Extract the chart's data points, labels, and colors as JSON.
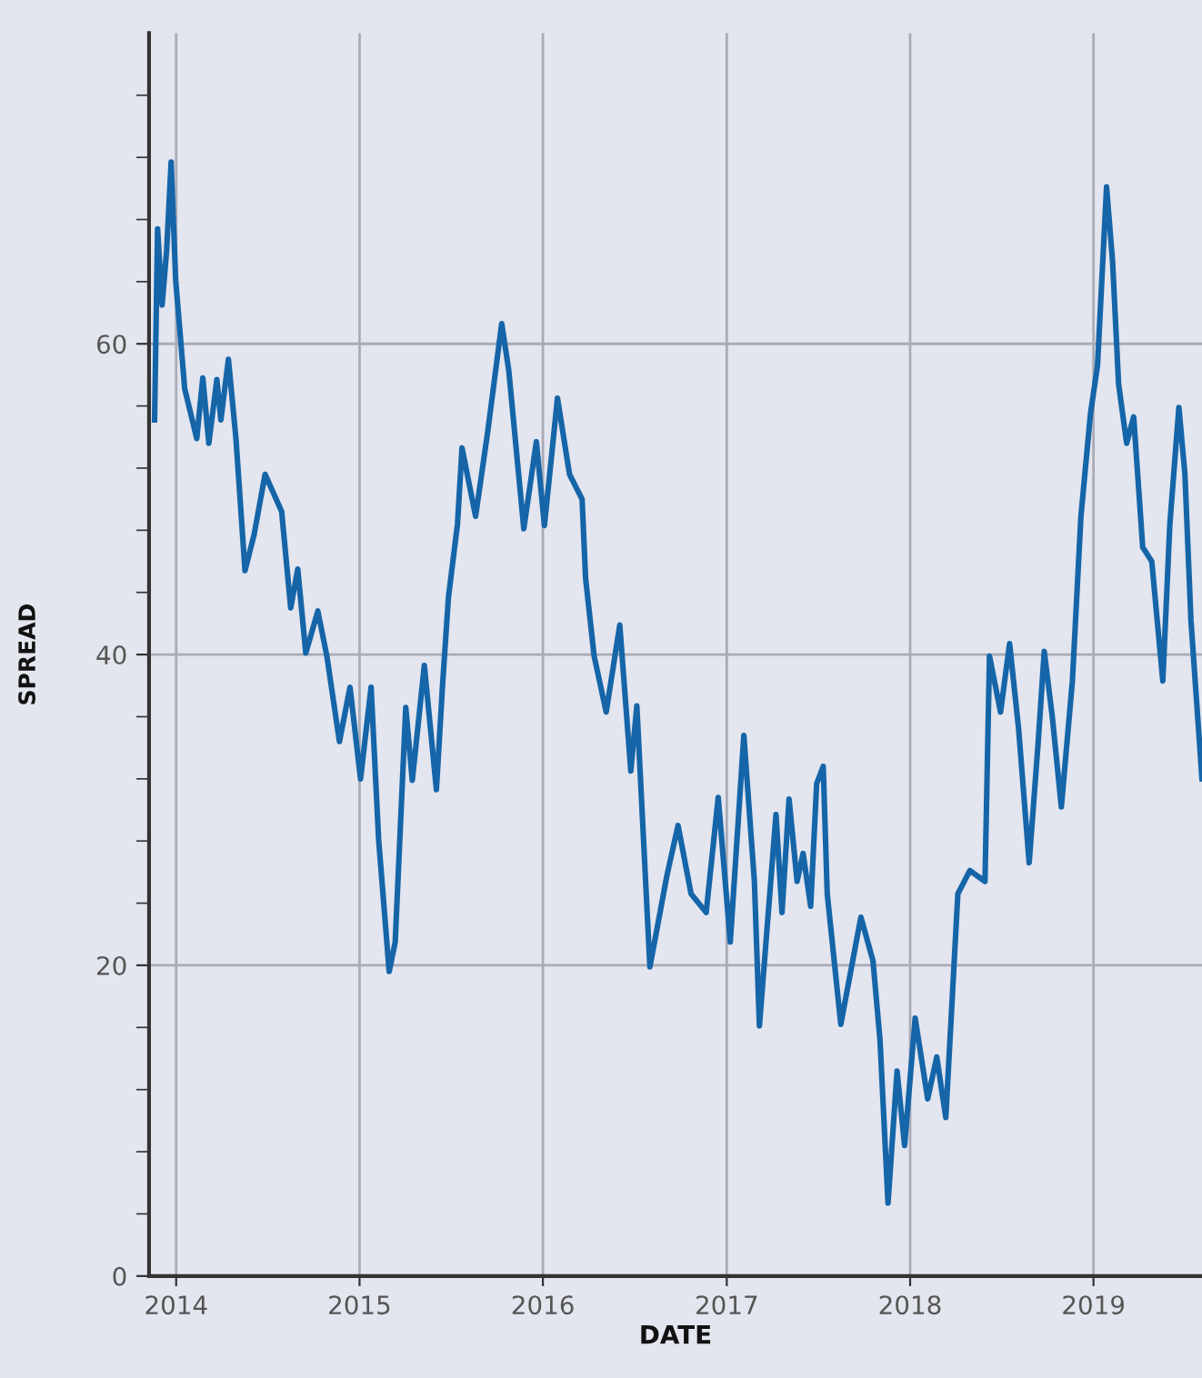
{
  "chart_data": {
    "type": "line",
    "xlabel": "DATE",
    "ylabel": "SPREAD",
    "xlim": [
      "2013-11-08",
      "2019-08-05"
    ],
    "xticks": [
      {
        "value": "2014-01-01",
        "label": "2014"
      },
      {
        "value": "2015-01-01",
        "label": "2015"
      },
      {
        "value": "2016-01-01",
        "label": "2016"
      },
      {
        "value": "2017-01-01",
        "label": "2017"
      },
      {
        "value": "2018-01-01",
        "label": "2018"
      },
      {
        "value": "2019-01-01",
        "label": "2019"
      }
    ],
    "ylim": [
      0,
      80
    ],
    "yticks": [
      0,
      {
        "value": 4,
        "label": null
      },
      {
        "value": 8,
        "label": null
      },
      {
        "value": 12,
        "label": null
      },
      {
        "value": 16,
        "label": null
      },
      20,
      {
        "value": 24,
        "label": null
      },
      {
        "value": 28,
        "label": null
      },
      {
        "value": 32,
        "label": null
      },
      {
        "value": 36,
        "label": null
      },
      40,
      {
        "value": 44,
        "label": null
      },
      {
        "value": 48,
        "label": null
      },
      {
        "value": 52,
        "label": null
      },
      {
        "value": 56,
        "label": null
      },
      60,
      {
        "value": 64,
        "label": null
      },
      {
        "value": 68,
        "label": null
      },
      {
        "value": 72,
        "label": null
      },
      {
        "value": 76,
        "label": null
      }
    ],
    "grid": true,
    "marker": "none",
    "line_style": "solid",
    "series": [
      {
        "color": "#1565a8",
        "x": [
          "2013-11-19",
          "2013-11-25",
          "2013-12-04",
          "2013-12-13",
          "2013-12-22",
          "2013-12-31",
          "2014-01-18",
          "2014-02-11",
          "2014-02-23",
          "2014-03-07",
          "2014-03-23",
          "2014-03-31",
          "2014-04-15",
          "2014-04-30",
          "2014-05-18",
          "2014-06-05",
          "2014-06-27",
          "2014-07-30",
          "2014-08-17",
          "2014-08-31",
          "2014-09-16",
          "2014-10-10",
          "2014-10-28",
          "2014-11-22",
          "2014-12-13",
          "2015-01-03",
          "2015-01-24",
          "2015-02-08",
          "2015-03-01",
          "2015-03-13",
          "2015-04-03",
          "2015-04-16",
          "2015-05-10",
          "2015-06-03",
          "2015-06-15",
          "2015-06-27",
          "2015-07-15",
          "2015-07-24",
          "2015-08-20",
          "2015-09-13",
          "2015-10-11",
          "2015-10-25",
          "2015-11-24",
          "2015-12-19",
          "2016-01-04",
          "2016-01-30",
          "2016-02-23",
          "2016-03-19",
          "2016-03-26",
          "2016-04-12",
          "2016-05-06",
          "2016-06-02",
          "2016-06-24",
          "2016-07-06",
          "2016-08-01",
          "2016-09-04",
          "2016-09-26",
          "2016-10-22",
          "2016-11-21",
          "2016-12-15",
          "2017-01-08",
          "2017-02-04",
          "2017-02-25",
          "2017-03-07",
          "2017-04-09",
          "2017-04-21",
          "2017-05-05",
          "2017-05-21",
          "2017-06-02",
          "2017-06-17",
          "2017-06-29",
          "2017-07-12",
          "2017-07-20",
          "2017-08-16",
          "2017-09-25",
          "2017-10-19",
          "2017-11-02",
          "2017-11-18",
          "2017-12-06",
          "2017-12-21",
          "2018-01-11",
          "2018-02-05",
          "2018-02-23",
          "2018-03-13",
          "2018-04-06",
          "2018-04-30",
          "2018-05-30",
          "2018-06-08",
          "2018-06-30",
          "2018-07-18",
          "2018-08-05",
          "2018-08-26",
          "2018-09-13",
          "2018-09-25",
          "2018-10-11",
          "2018-10-29",
          "2018-11-20",
          "2018-12-07",
          "2018-12-26",
          "2019-01-09",
          "2019-01-27",
          "2019-02-08",
          "2019-02-20",
          "2019-03-08",
          "2019-03-22",
          "2019-04-09",
          "2019-04-27",
          "2019-05-19",
          "2019-06-02",
          "2019-06-20",
          "2019-07-02",
          "2019-07-14",
          "2019-08-05"
        ],
        "values": [
          55.1,
          67.4,
          62.5,
          66,
          71.7,
          64.1,
          57.1,
          53.9,
          57.8,
          53.6,
          57.7,
          55.1,
          59,
          53.9,
          45.4,
          47.7,
          51.6,
          49.2,
          43,
          45.5,
          40.1,
          42.8,
          39.9,
          34.4,
          37.9,
          32,
          37.9,
          28.1,
          19.6,
          21.5,
          36.6,
          31.9,
          39.3,
          31.3,
          37.9,
          43.7,
          48.4,
          53.3,
          48.9,
          54.3,
          61.3,
          58.3,
          48.1,
          53.7,
          48.3,
          56.5,
          51.6,
          50,
          44.9,
          39.9,
          36.3,
          41.9,
          32.5,
          36.7,
          19.9,
          25.8,
          29,
          24.6,
          23.4,
          30.8,
          21.5,
          34.8,
          25.4,
          16.1,
          29.7,
          23.4,
          30.7,
          25.4,
          27.2,
          23.8,
          31.7,
          32.8,
          24.6,
          16.2,
          23.1,
          20.3,
          15.2,
          4.7,
          13.2,
          8.4,
          16.6,
          11.4,
          14.1,
          10.2,
          24.6,
          26.1,
          25.4,
          39.9,
          36.3,
          40.7,
          35.2,
          26.6,
          34.4,
          40.2,
          36,
          30.2,
          38.3,
          48.9,
          55.5,
          58.6,
          70.1,
          65.3,
          57.4,
          53.6,
          55.3,
          46.9,
          46,
          38.3,
          48.4,
          55.9,
          51.6,
          42.2,
          32
        ]
      }
    ]
  }
}
